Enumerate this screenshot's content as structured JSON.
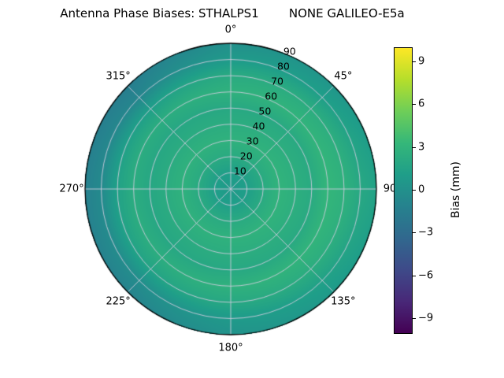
{
  "title": "Antenna Phase Biases: STHALPS1        NONE GALILEO-E5a",
  "polar": {
    "angle_labels": [
      {
        "label": "0°",
        "azimuth_deg": 0
      },
      {
        "label": "45°",
        "azimuth_deg": 45
      },
      {
        "label": "90",
        "azimuth_deg": 90
      },
      {
        "label": "135°",
        "azimuth_deg": 135
      },
      {
        "label": "180°",
        "azimuth_deg": 180
      },
      {
        "label": "225°",
        "azimuth_deg": 225
      },
      {
        "label": "270°",
        "azimuth_deg": 270
      },
      {
        "label": "315°",
        "azimuth_deg": 315
      }
    ],
    "radial_ticks": [
      "10",
      "20",
      "30",
      "40",
      "50",
      "60",
      "70",
      "80",
      "90"
    ],
    "radial_tick_values": [
      10,
      20,
      30,
      40,
      50,
      60,
      70,
      80,
      90
    ],
    "radial_tick_azimuth_deg": 22.5,
    "grid_color": "#ccccdd",
    "outline_color": "#000000",
    "max_zenith_deg": 90
  },
  "colorbar": {
    "label": "Bias (mm)",
    "tick_labels": [
      "9",
      "6",
      "3",
      "0",
      "−3",
      "−6",
      "−9"
    ],
    "tick_values": [
      9,
      6,
      3,
      0,
      -3,
      -6,
      -9
    ],
    "vmin": -10,
    "vmax": 10,
    "colormap": "viridis",
    "viridis_stops": [
      "#440154",
      "#482878",
      "#3e4a89",
      "#31688e",
      "#26828e",
      "#1f9e89",
      "#35b779",
      "#6ece58",
      "#b5de2b",
      "#fde725"
    ]
  },
  "chart_data": {
    "type": "heatmap",
    "projection": "polar",
    "title": "Antenna Phase Biases: STHALPS1        NONE GALILEO-E5a",
    "value_label": "Bias (mm)",
    "vmin": -10,
    "vmax": 10,
    "azimuth_deg": [
      0,
      45,
      90,
      135,
      180,
      225,
      270,
      315
    ],
    "zenith_deg": [
      0,
      10,
      20,
      30,
      40,
      50,
      60,
      70,
      80,
      90
    ],
    "bias_mm": [
      [
        0.8,
        1.2,
        2.2,
        2.8,
        2.4,
        2.0,
        2.8,
        2.2,
        0.8,
        0.0
      ],
      [
        0.8,
        1.2,
        2.2,
        2.9,
        2.5,
        2.1,
        3.0,
        2.4,
        1.2,
        0.5
      ],
      [
        0.8,
        1.2,
        2.2,
        3.0,
        2.6,
        2.2,
        3.2,
        2.8,
        2.0,
        1.5
      ],
      [
        0.8,
        1.2,
        2.2,
        2.9,
        2.5,
        2.1,
        3.0,
        2.4,
        1.4,
        0.8
      ],
      [
        0.8,
        1.2,
        2.2,
        2.8,
        2.4,
        2.0,
        2.8,
        2.0,
        0.8,
        0.2
      ],
      [
        0.8,
        1.2,
        2.2,
        2.8,
        2.3,
        1.9,
        2.5,
        1.6,
        -0.2,
        -1.0
      ],
      [
        0.8,
        1.2,
        2.2,
        2.8,
        2.3,
        1.9,
        2.4,
        1.4,
        -0.5,
        -1.2
      ],
      [
        0.8,
        1.2,
        2.2,
        2.8,
        2.3,
        1.9,
        2.4,
        1.2,
        -0.8,
        -1.5
      ]
    ]
  }
}
